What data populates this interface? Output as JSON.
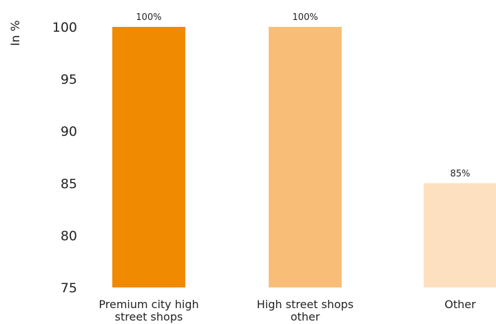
{
  "chart_data": {
    "type": "bar",
    "title": "",
    "ylabel": "In %",
    "xlabel": "",
    "ylim": [
      75,
      100
    ],
    "yticks": [
      "75",
      "80",
      "85",
      "90",
      "95",
      "100"
    ],
    "categories": [
      "Premium city high street shops",
      "High street shops other",
      "Other"
    ],
    "category_lines": [
      [
        "Premium city high",
        "street shops"
      ],
      [
        "High street shops",
        "other"
      ],
      [
        "Other"
      ]
    ],
    "values": [
      100,
      100,
      85
    ],
    "data_labels": [
      "100%",
      "100%",
      "85%"
    ],
    "colors": [
      "#F08A00",
      "#F8BE78",
      "#FCE0C0"
    ],
    "grid": false,
    "legend": "none"
  }
}
